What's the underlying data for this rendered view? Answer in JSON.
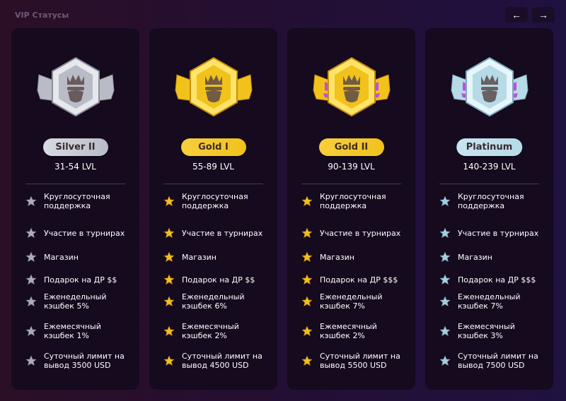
{
  "header": {
    "title": "VIP Статусы",
    "prev_icon": "arrow-left-icon",
    "next_icon": "arrow-right-icon",
    "prev": "←",
    "next": "→"
  },
  "cards": [
    {
      "name": "Silver II",
      "lvl": "31-54 LVL",
      "theme": "silver",
      "colors": {
        "pill": "#d7dbe4",
        "star": "#a9adb8"
      },
      "features": [
        "Круглосуточная\nподдержка",
        "Участие в турнирах",
        "Магазин",
        "Подарок на ДР $$",
        "Еженедельный\nкэшбек 5%",
        "Ежемесячный\nкэшбек 1%",
        "Суточный лимит на\nвывод 3500 USD"
      ]
    },
    {
      "name": "Gold I",
      "lvl": "55-89 LVL",
      "theme": "gold",
      "colors": {
        "pill": "#f7cf3c",
        "star": "#f0c020"
      },
      "features": [
        "Круглосуточная\nподдержка",
        "Участие в турнирах",
        "Магазин",
        "Подарок на ДР $$",
        "Еженедельный\nкэшбек 6%",
        "Ежемесячный\nкэшбек 2%",
        "Суточный лимит на\nвывод 4500 USD"
      ]
    },
    {
      "name": "Gold II",
      "lvl": "90-139 LVL",
      "theme": "gold-gem",
      "colors": {
        "pill": "#f7cf3c",
        "star": "#f0c020"
      },
      "features": [
        "Круглосуточная\nподдержка",
        "Участие в турнирах",
        "Магазин",
        "Подарок на ДР $$$",
        "Еженедельный\nкэшбек 7%",
        "Ежемесячный\nкэшбек 2%",
        "Суточный лимит на\nвывод 5500 USD"
      ]
    },
    {
      "name": "Platinum",
      "lvl": "140-239 LVL",
      "theme": "platinum",
      "colors": {
        "pill": "#c9e4f2",
        "star": "#a8cde0"
      },
      "features": [
        "Круглосуточная\nподдержка",
        "Участие в турнирах",
        "Магазин",
        "Подарок на ДР $$$",
        "Еженедельный\nкэшбек 7%",
        "Ежемесячный\nкэшбек 3%",
        "Суточный лимит на\nвывод 7500 USD"
      ]
    }
  ]
}
